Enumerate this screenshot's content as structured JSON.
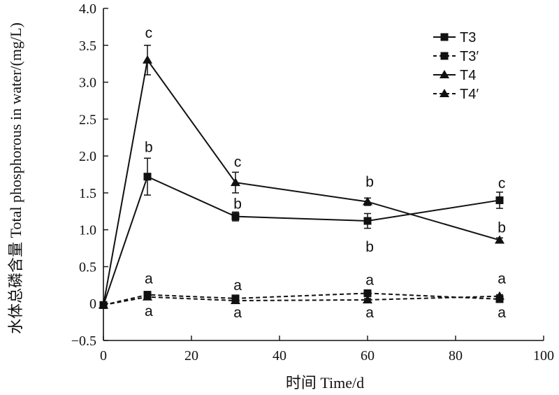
{
  "chart_data": {
    "type": "line",
    "xlabel": "时间 Time/d",
    "ylabel": "水体总磷含量 Total phosphorous in water/(mg/L)",
    "xlim": [
      0,
      100
    ],
    "ylim": [
      -0.5,
      4.0
    ],
    "xticks": [
      "0",
      "20",
      "40",
      "60",
      "80",
      "100"
    ],
    "xtick_values": [
      0,
      20,
      40,
      60,
      80,
      100
    ],
    "yticks": [
      "−0.5",
      "0",
      "0.5",
      "1.0",
      "1.5",
      "2.0",
      "2.5",
      "3.0",
      "3.5",
      "4.0"
    ],
    "ytick_values": [
      -0.5,
      0,
      0.5,
      1.0,
      1.5,
      2.0,
      2.5,
      3.0,
      3.5,
      4.0
    ],
    "legend_position": "top-right",
    "grid": false,
    "series": [
      {
        "name": "T3",
        "marker": "square",
        "dashed": false,
        "x": [
          0,
          10,
          30,
          60,
          90
        ],
        "y": [
          -0.02,
          1.72,
          1.18,
          1.12,
          1.4
        ],
        "err": [
          0,
          0.25,
          0.06,
          0.1,
          0.11
        ]
      },
      {
        "name": "T3′",
        "marker": "square",
        "dashed": true,
        "x": [
          0,
          10,
          30,
          60,
          90
        ],
        "y": [
          -0.02,
          0.12,
          0.07,
          0.14,
          0.06
        ],
        "err": [
          0,
          0.02,
          0.02,
          0.02,
          0.02
        ]
      },
      {
        "name": "T4",
        "marker": "triangle",
        "dashed": false,
        "x": [
          0,
          10,
          30,
          60,
          90
        ],
        "y": [
          -0.02,
          3.3,
          1.64,
          1.38,
          0.86
        ],
        "err": [
          0,
          0.2,
          0.14,
          0.05,
          0.03
        ]
      },
      {
        "name": "T4′",
        "marker": "triangle",
        "dashed": true,
        "x": [
          0,
          10,
          30,
          60,
          90
        ],
        "y": [
          -0.02,
          0.09,
          0.04,
          0.05,
          0.1
        ],
        "err": [
          0,
          0.02,
          0.02,
          0.02,
          0.02
        ]
      }
    ],
    "annotations": [
      {
        "text": "c",
        "x": 10.3,
        "y": 3.67
      },
      {
        "text": "b",
        "x": 10.3,
        "y": 2.12
      },
      {
        "text": "a",
        "x": 10.3,
        "y": 0.34
      },
      {
        "text": "a",
        "x": 10.3,
        "y": -0.1
      },
      {
        "text": "c",
        "x": 30.5,
        "y": 1.92
      },
      {
        "text": "b",
        "x": 30.5,
        "y": 1.35
      },
      {
        "text": "a",
        "x": 30.5,
        "y": 0.25
      },
      {
        "text": "a",
        "x": 30.5,
        "y": -0.12
      },
      {
        "text": "b",
        "x": 60.5,
        "y": 1.65
      },
      {
        "text": "b",
        "x": 60.5,
        "y": 0.77
      },
      {
        "text": "a",
        "x": 60.5,
        "y": 0.32
      },
      {
        "text": "a",
        "x": 60.5,
        "y": -0.12
      },
      {
        "text": "c",
        "x": 90.5,
        "y": 1.63
      },
      {
        "text": "b",
        "x": 90.5,
        "y": 1.03
      },
      {
        "text": "a",
        "x": 90.5,
        "y": 0.34
      },
      {
        "text": "a",
        "x": 90.5,
        "y": -0.12
      }
    ]
  }
}
